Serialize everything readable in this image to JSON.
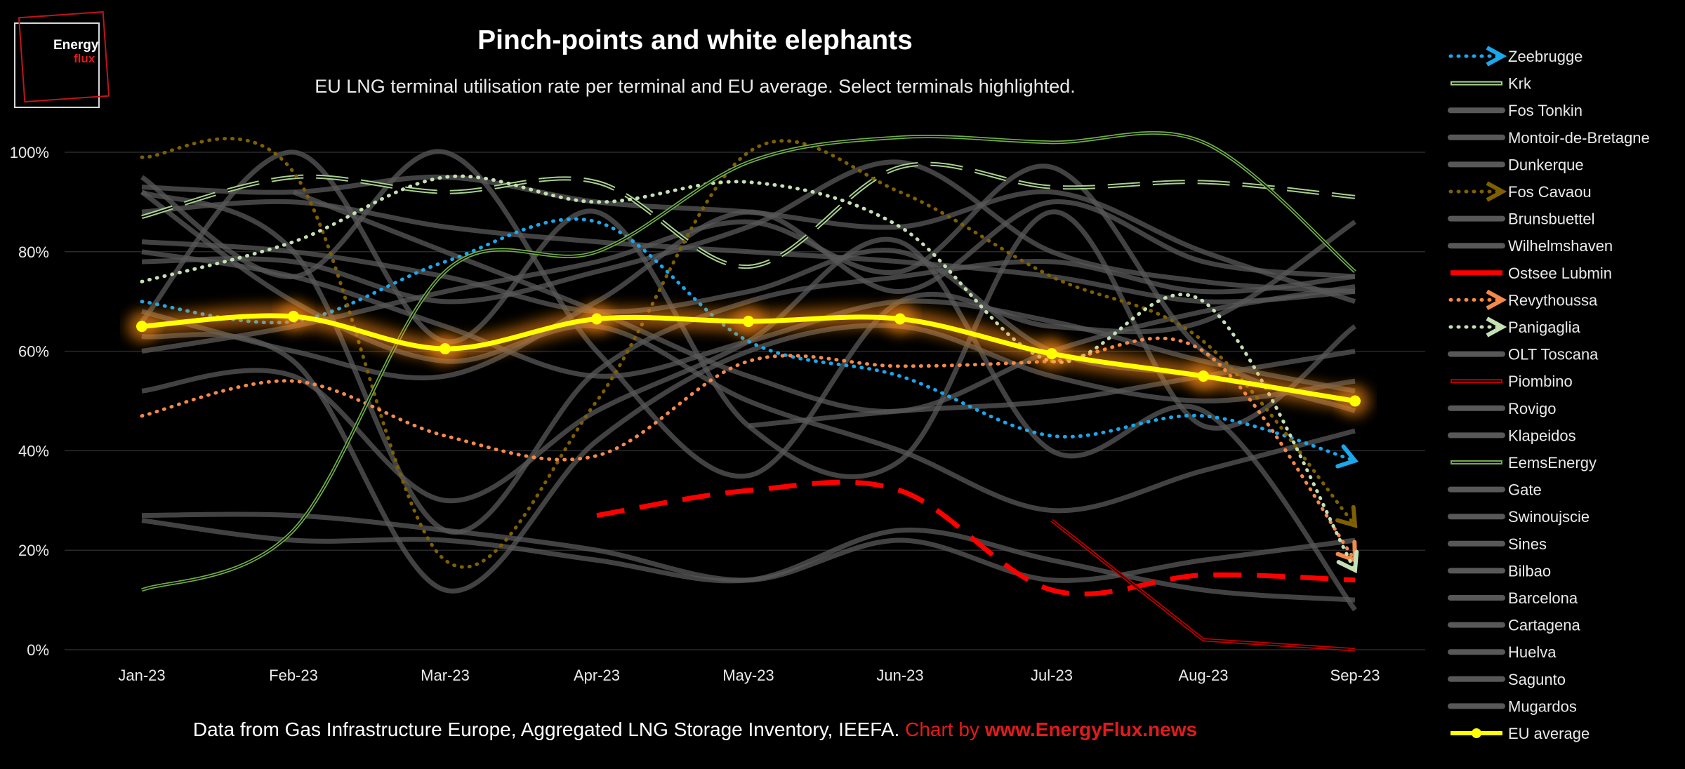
{
  "logo": {
    "line1": "Energy",
    "line2": "flux"
  },
  "title": "Pinch-points and white elephants",
  "subtitle": "EU LNG terminal utilisation rate per terminal and EU average. Select terminals highlighted.",
  "footer": {
    "source": "Data from Gas Infrastructure Europe, Aggregated LNG Storage Inventory, IEEFA.",
    "credit": "Chart by",
    "credit_url": "www.EnergyFlux.news"
  },
  "colors": {
    "background": "#000000",
    "grey_series": "#585858",
    "zeebrugge": "#1aa7ec",
    "krk": "#a9d18e",
    "fos_cavaou": "#7f6000",
    "ostsee_lubmin": "#ff0000",
    "revythoussa": "#f4894a",
    "panigaglia": "#c5e0b4",
    "piombino": "#c00000",
    "eemsenergy": "#70ad47",
    "eu_average": "#ffff00",
    "eu_glow": "#ff8c1a"
  },
  "chart_data": {
    "type": "line",
    "categories": [
      "Jan-23",
      "Feb-23",
      "Mar-23",
      "Apr-23",
      "May-23",
      "Jun-23",
      "Jul-23",
      "Aug-23",
      "Sep-23"
    ],
    "ylim": [
      0,
      100
    ],
    "yticks": [
      "0%",
      "20%",
      "40%",
      "60%",
      "80%",
      "100%"
    ],
    "grid": true,
    "legend_position": "right",
    "series": [
      {
        "name": "Zeebrugge",
        "style": "dotted-arrow",
        "color": "zeebrugge",
        "values": [
          70,
          66,
          78,
          86,
          62,
          55,
          43,
          47,
          38
        ]
      },
      {
        "name": "Krk",
        "style": "double-dash",
        "color": "krk",
        "values": [
          87,
          95,
          92,
          94,
          77,
          97,
          93,
          94,
          91
        ]
      },
      {
        "name": "Fos Tonkin",
        "style": "grey",
        "values": [
          93,
          92,
          95,
          90,
          88,
          85,
          92,
          80,
          70
        ]
      },
      {
        "name": "Montoir-de-Bretagne",
        "style": "grey",
        "values": [
          92,
          80,
          24,
          56,
          70,
          75,
          78,
          72,
          75
        ]
      },
      {
        "name": "Dunkerque",
        "style": "grey",
        "values": [
          78,
          78,
          70,
          76,
          85,
          98,
          80,
          74,
          72
        ]
      },
      {
        "name": "Fos Cavaou",
        "style": "dotted-arrow",
        "color": "fos_cavaou",
        "values": [
          99,
          96,
          18,
          50,
          100,
          92,
          75,
          62,
          25
        ]
      },
      {
        "name": "Brunsbuettel",
        "style": "grey",
        "values": [
          null,
          null,
          null,
          null,
          45,
          48,
          50,
          55,
          60
        ]
      },
      {
        "name": "Wilhelmshaven",
        "style": "grey",
        "values": [
          null,
          92,
          80,
          68,
          55,
          48,
          60,
          68,
          73
        ]
      },
      {
        "name": "Ostsee Lubmin",
        "style": "dashed",
        "color": "ostsee_lubmin",
        "values": [
          null,
          null,
          null,
          27,
          32,
          32,
          12,
          15,
          14
        ]
      },
      {
        "name": "Revythoussa",
        "style": "dotted-arrow",
        "color": "revythoussa",
        "values": [
          47,
          54,
          43,
          39,
          58,
          57,
          58,
          60,
          18
        ]
      },
      {
        "name": "Panigaglia",
        "style": "dotted-arrow",
        "color": "panigaglia",
        "values": [
          74,
          82,
          95,
          90,
          94,
          85,
          58,
          70,
          16
        ]
      },
      {
        "name": "OLT Toscana",
        "style": "grey",
        "values": [
          63,
          58,
          12,
          42,
          60,
          65,
          55,
          50,
          54
        ]
      },
      {
        "name": "Piombino",
        "style": "double-solid",
        "color": "piombino",
        "values": [
          null,
          null,
          null,
          null,
          null,
          null,
          26,
          2,
          0
        ]
      },
      {
        "name": "Rovigo",
        "style": "grey",
        "values": [
          88,
          90,
          85,
          82,
          80,
          78,
          75,
          70,
          72
        ]
      },
      {
        "name": "Klapeidos",
        "style": "grey",
        "values": [
          27,
          27,
          24,
          20,
          14,
          22,
          14,
          18,
          22
        ]
      },
      {
        "name": "EemsEnergy",
        "style": "double-solid",
        "color": "eemsenergy",
        "values": [
          12,
          24,
          76,
          80,
          98,
          103,
          102,
          102,
          76
        ]
      },
      {
        "name": "Gate",
        "style": "grey",
        "values": [
          95,
          75,
          100,
          60,
          35,
          70,
          65,
          66,
          86
        ]
      },
      {
        "name": "Swinoujscie",
        "style": "grey",
        "values": [
          68,
          60,
          55,
          70,
          88,
          72,
          90,
          78,
          75
        ]
      },
      {
        "name": "Sines",
        "style": "grey",
        "values": [
          52,
          55,
          30,
          48,
          62,
          82,
          40,
          48,
          8
        ]
      },
      {
        "name": "Bilbao",
        "style": "grey",
        "values": [
          66,
          100,
          62,
          88,
          45,
          38,
          88,
          45,
          65
        ]
      },
      {
        "name": "Barcelona",
        "style": "grey",
        "values": [
          82,
          80,
          75,
          68,
          72,
          80,
          60,
          55,
          50
        ]
      },
      {
        "name": "Cartagena",
        "style": "grey",
        "values": [
          26,
          22,
          22,
          18,
          14,
          24,
          18,
          12,
          10
        ]
      },
      {
        "name": "Huelva",
        "style": "grey",
        "values": [
          92,
          70,
          58,
          65,
          50,
          40,
          28,
          36,
          44
        ]
      },
      {
        "name": "Sagunto",
        "style": "grey",
        "values": [
          80,
          75,
          65,
          55,
          62,
          70,
          66,
          58,
          52
        ]
      },
      {
        "name": "Mugardos",
        "style": "grey",
        "values": [
          60,
          65,
          72,
          78,
          86,
          76,
          97,
          60,
          48
        ]
      },
      {
        "name": "EU average",
        "style": "eu-average",
        "color": "eu_average",
        "values": [
          65,
          67,
          60.5,
          66.5,
          66,
          66.5,
          59.5,
          55,
          50
        ]
      }
    ]
  }
}
